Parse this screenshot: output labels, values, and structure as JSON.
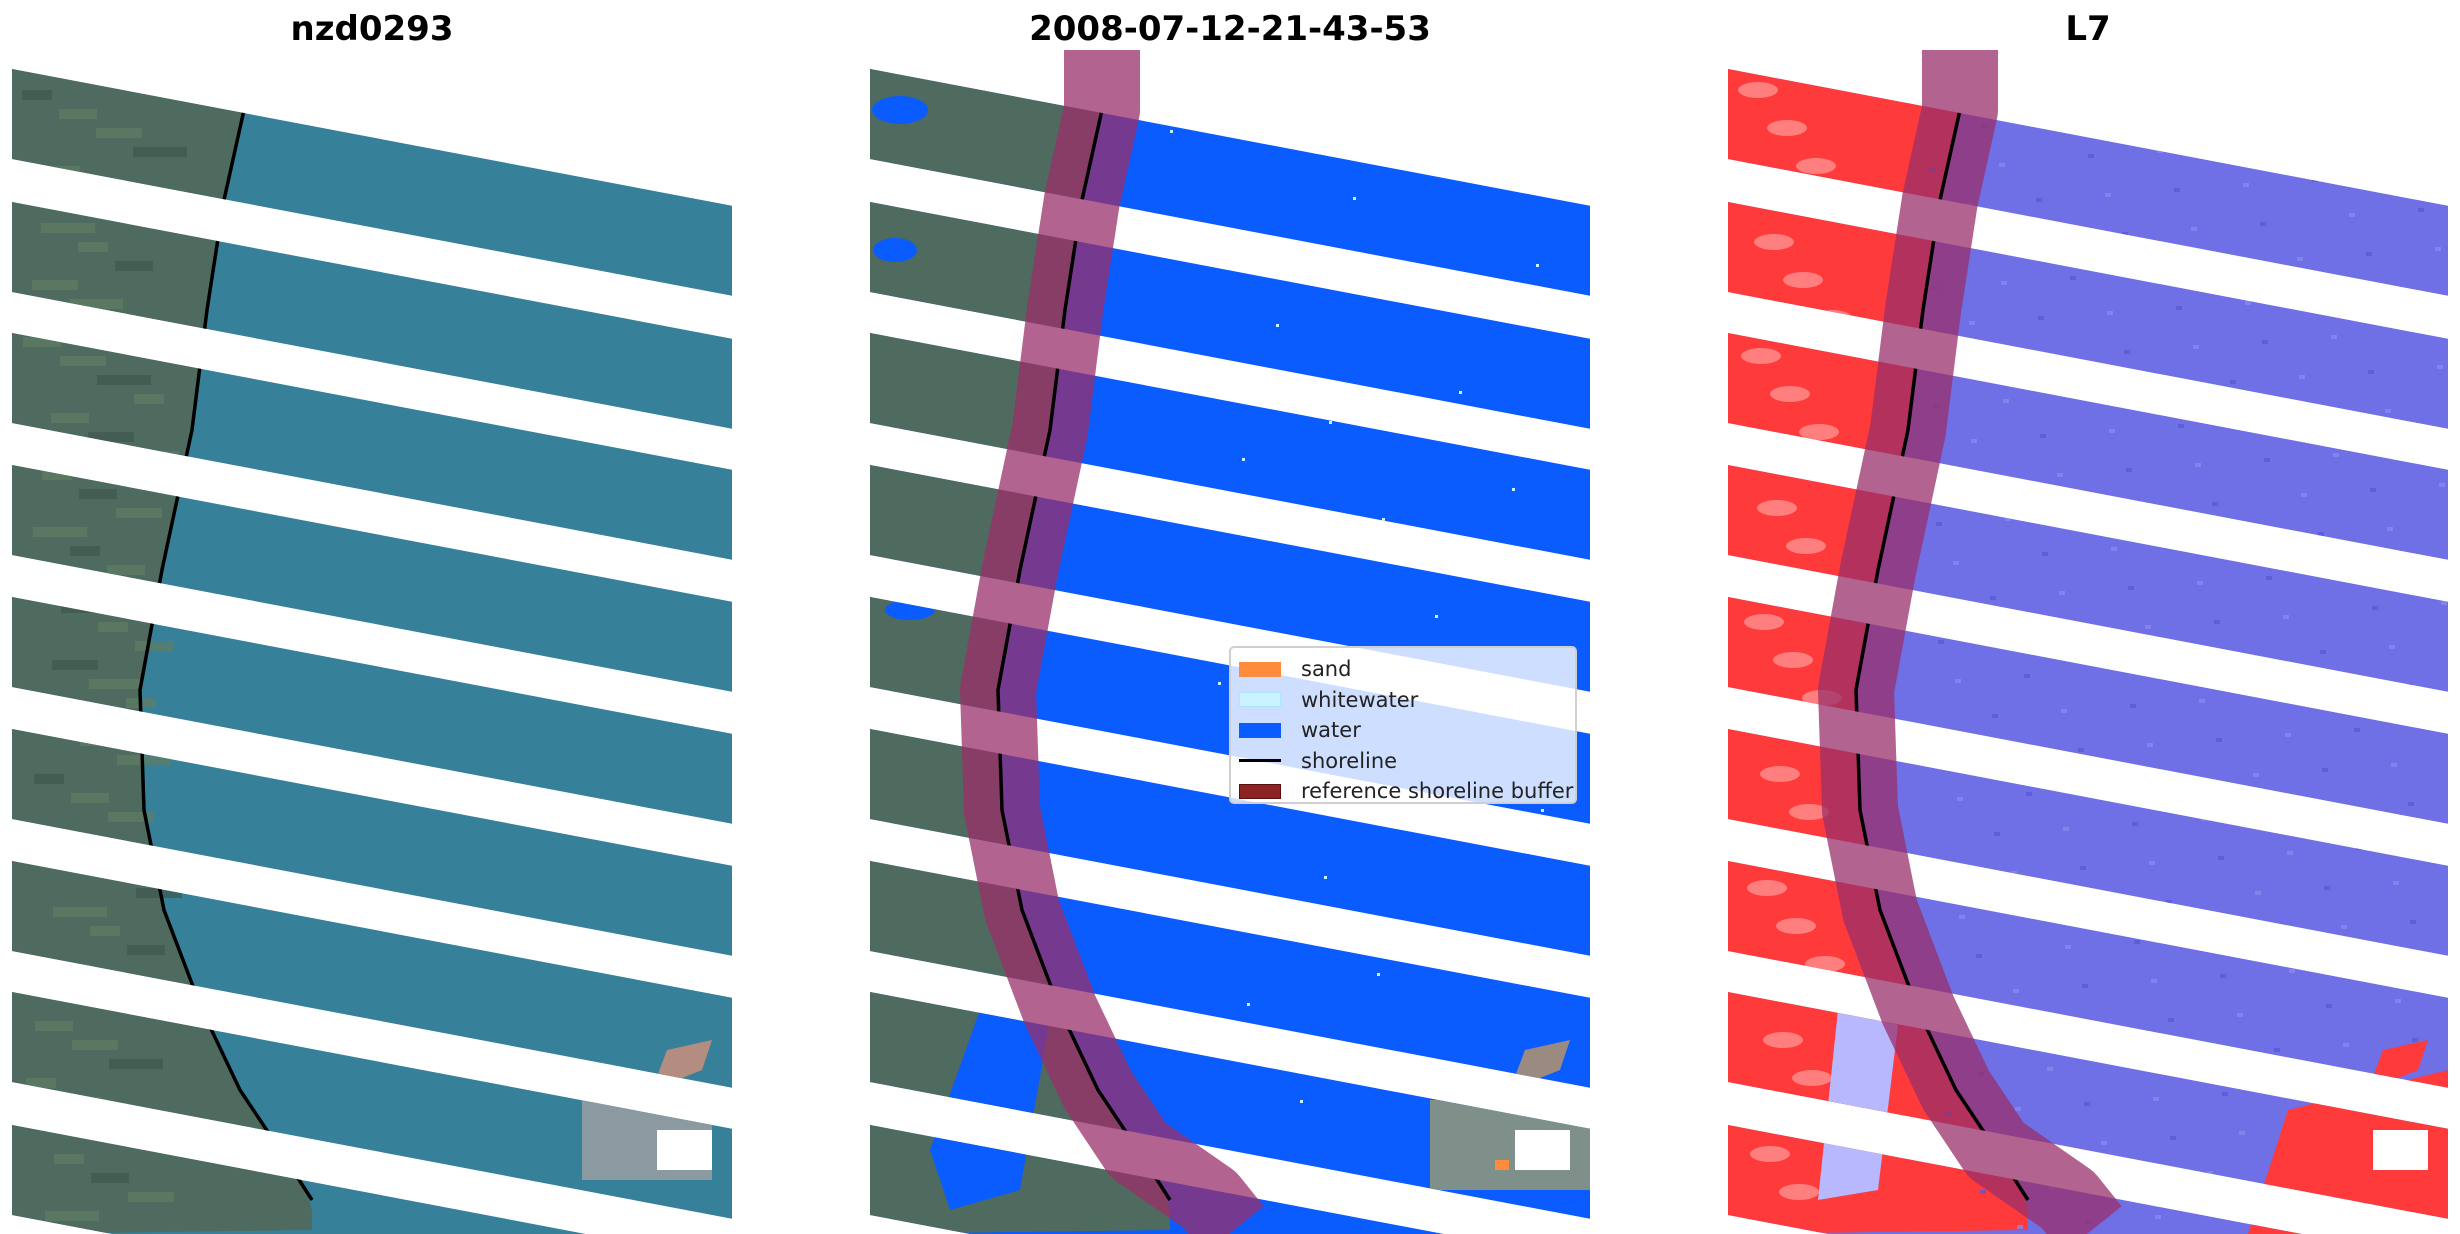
{
  "panels": [
    {
      "title": "nzd0293",
      "view": "rgb"
    },
    {
      "title": "2008-07-12-21-43-53",
      "view": "classification"
    },
    {
      "title": "L7",
      "view": "water-index"
    }
  ],
  "legend": {
    "items": [
      {
        "label": "sand",
        "kind": "patch",
        "color": "#ff8c3c"
      },
      {
        "label": "whitewater",
        "kind": "patch",
        "color": "#c8f2ff"
      },
      {
        "label": "water",
        "kind": "patch",
        "color": "#0a5cff"
      },
      {
        "label": "shoreline",
        "kind": "line",
        "color": "#000000"
      },
      {
        "label": "reference shoreline buffer",
        "kind": "patch",
        "color": "#8b2323"
      }
    ]
  },
  "colors": {
    "land": "#4f6a5e",
    "sea": "#36809a",
    "water_class": "#0a5cff",
    "buffer": "#9a2f6a",
    "index_land": "#ff3a3a",
    "index_water": "#6f6fe6"
  }
}
